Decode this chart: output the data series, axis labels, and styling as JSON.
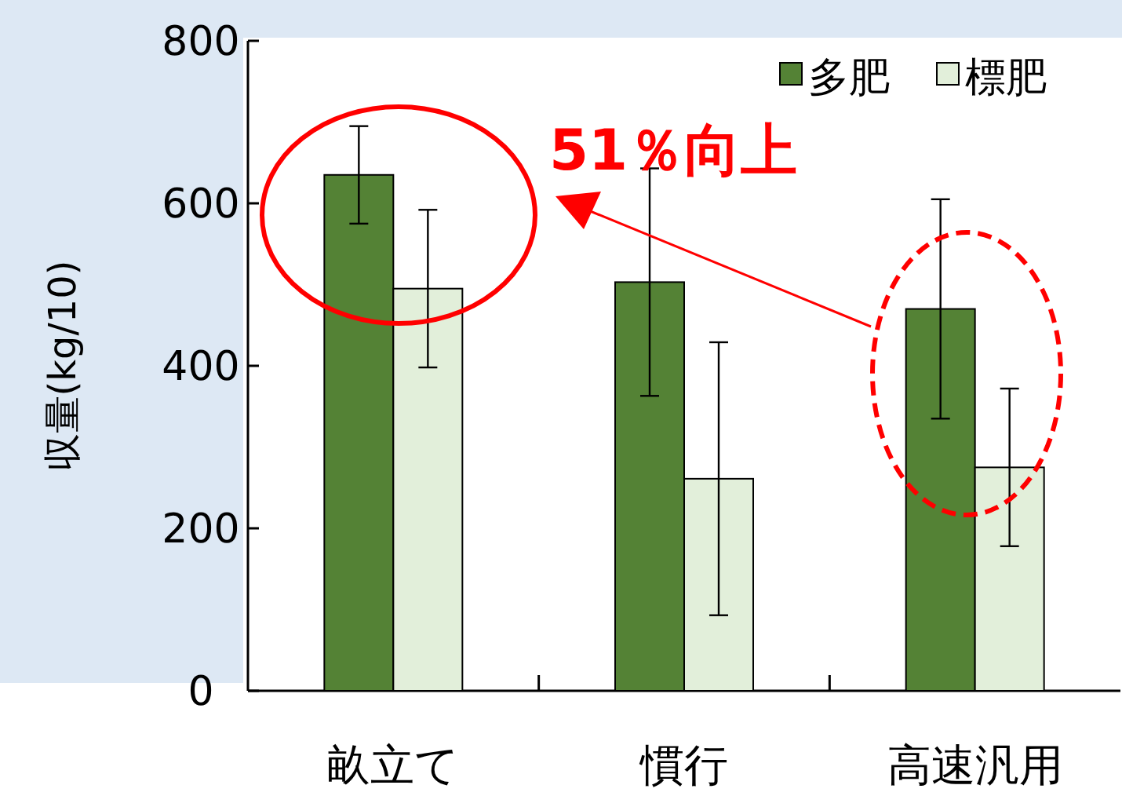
{
  "chart_data": {
    "type": "bar",
    "ylabel": "収量(kg/10)",
    "categories": [
      "畝立て",
      "慣行",
      "高速汎用"
    ],
    "series": [
      {
        "name": "多肥",
        "color": "#548235",
        "values": [
          635,
          503,
          470
        ],
        "errors": [
          60,
          140,
          135
        ]
      },
      {
        "name": "標肥",
        "color": "#e2efda",
        "values": [
          495,
          261,
          275
        ],
        "errors": [
          97,
          168,
          97
        ]
      }
    ],
    "ylim": [
      0,
      800
    ],
    "yticks": [
      0,
      200,
      400,
      600,
      800
    ],
    "legend": "top right",
    "grid": false,
    "annotations": [
      "51％向上"
    ]
  }
}
